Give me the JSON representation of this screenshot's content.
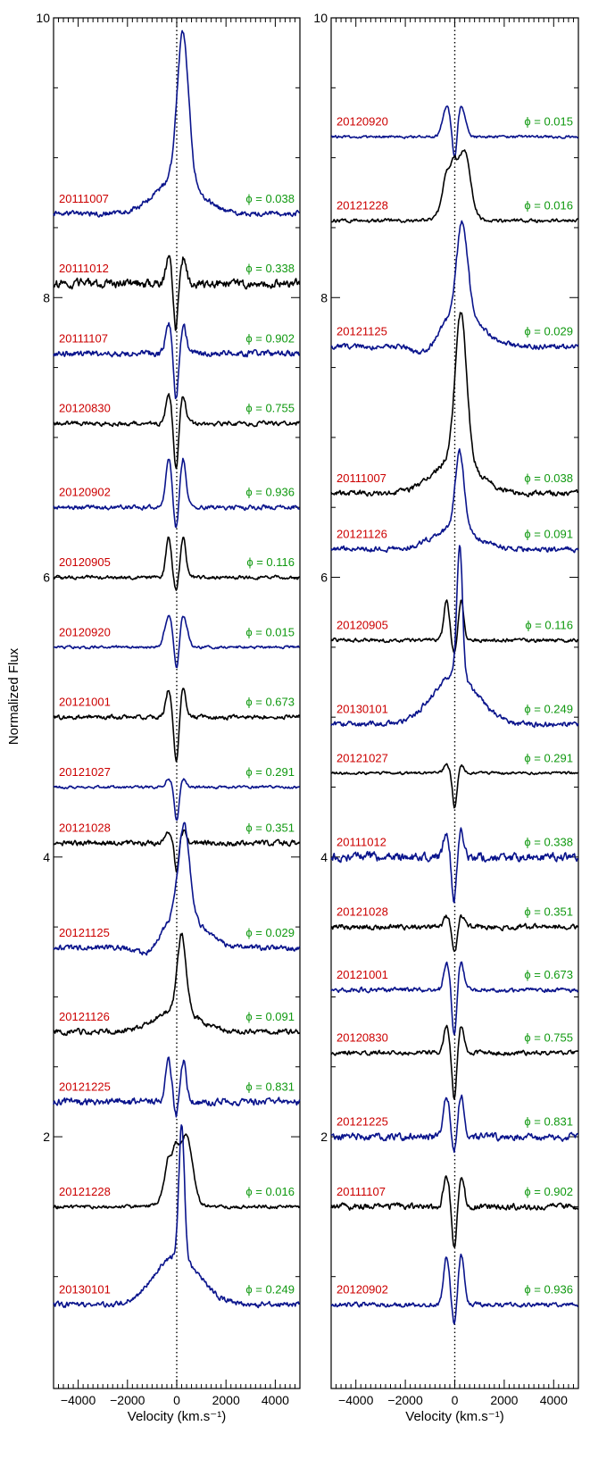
{
  "figure": {
    "ylabel": "Normalized Flux",
    "xlabel": "Velocity (km.s⁻¹)",
    "colors": {
      "black": "#000000",
      "blue": "#0a148c",
      "date": "#cc0000",
      "phase": "#109910"
    }
  },
  "chart_data": [
    {
      "type": "line",
      "title": "",
      "xlabel": "Velocity (km.s⁻¹)",
      "ylabel": "Normalized Flux",
      "xlim": [
        -5000,
        5000
      ],
      "ylim": [
        0.2,
        10
      ],
      "xticks": [
        -4000,
        -2000,
        0,
        2000,
        4000
      ],
      "xtick_labels": [
        "−4000",
        "−2000",
        "0",
        "2000",
        "4000"
      ],
      "yticks": [
        2,
        4,
        6,
        8,
        10
      ],
      "ytick_labels": [
        "2",
        "4",
        "6",
        "8",
        "10"
      ],
      "reference_line_x": 0,
      "series": [
        {
          "name": "20111007",
          "phase": "ϕ = 0.038",
          "color": "blue",
          "offset": 8.6,
          "profile": "emission",
          "amp": 1.05,
          "vc": 250,
          "width": 230,
          "blue_abs": 0.0,
          "red_abs": 0.0,
          "abs_v": 0,
          "wing": 0.25,
          "noise": 0.03
        },
        {
          "name": "20111012",
          "phase": "ϕ = 0.338",
          "color": "black",
          "offset": 8.1,
          "profile": "double",
          "amp": 0.18,
          "vc": 0,
          "width": 120,
          "blue_abs": 0.28,
          "red_abs": 0.0,
          "abs_v": -40,
          "wing": 0.0,
          "noise": 0.05
        },
        {
          "name": "20111107",
          "phase": "ϕ = 0.902",
          "color": "blue",
          "offset": 7.6,
          "profile": "double",
          "amp": 0.22,
          "vc": 0,
          "width": 120,
          "blue_abs": 0.28,
          "red_abs": 0.05,
          "abs_v": -30,
          "wing": 0.0,
          "noise": 0.035
        },
        {
          "name": "20120830",
          "phase": "ϕ = 0.755",
          "color": "black",
          "offset": 7.1,
          "profile": "double",
          "amp": 0.2,
          "vc": 0,
          "width": 110,
          "blue_abs": 0.28,
          "red_abs": 0.0,
          "abs_v": -20,
          "wing": 0.0,
          "noise": 0.025
        },
        {
          "name": "20120902",
          "phase": "ϕ = 0.936",
          "color": "blue",
          "offset": 6.5,
          "profile": "double",
          "amp": 0.35,
          "vc": 0,
          "width": 120,
          "blue_abs": 0.12,
          "red_abs": 0.0,
          "abs_v": -20,
          "wing": 0.0,
          "noise": 0.025
        },
        {
          "name": "20120905",
          "phase": "ϕ = 0.116",
          "color": "black",
          "offset": 6.0,
          "profile": "double",
          "amp": 0.28,
          "vc": 0,
          "width": 110,
          "blue_abs": 0.05,
          "red_abs": 0.0,
          "abs_v": -20,
          "wing": 0.0,
          "noise": 0.02
        },
        {
          "name": "20120920",
          "phase": "ϕ = 0.015",
          "color": "blue",
          "offset": 5.5,
          "profile": "double",
          "amp": 0.22,
          "vc": 0,
          "width": 160,
          "blue_abs": 0.18,
          "red_abs": 0.0,
          "abs_v": 0,
          "wing": 0.0,
          "noise": 0.015
        },
        {
          "name": "20121001",
          "phase": "ϕ = 0.673",
          "color": "black",
          "offset": 5.0,
          "profile": "double",
          "amp": 0.2,
          "vc": 0,
          "width": 110,
          "blue_abs": 0.28,
          "red_abs": 0.0,
          "abs_v": -20,
          "wing": 0.0,
          "noise": 0.025
        },
        {
          "name": "20121027",
          "phase": "ϕ = 0.291",
          "color": "blue",
          "offset": 4.5,
          "profile": "double",
          "amp": 0.06,
          "vc": 0,
          "width": 120,
          "blue_abs": 0.2,
          "red_abs": 0.0,
          "abs_v": 0,
          "wing": 0.0,
          "noise": 0.015
        },
        {
          "name": "20121028",
          "phase": "ϕ = 0.351",
          "color": "black",
          "offset": 4.1,
          "profile": "double",
          "amp": 0.08,
          "vc": 0,
          "width": 120,
          "blue_abs": 0.15,
          "red_abs": 0.0,
          "abs_v": 0,
          "wing": 0.0,
          "noise": 0.03
        },
        {
          "name": "20121125",
          "phase": "ϕ = 0.029",
          "color": "blue",
          "offset": 3.35,
          "profile": "emission",
          "amp": 0.65,
          "vc": 300,
          "width": 220,
          "blue_abs": 0.12,
          "red_abs": 0.0,
          "abs_v": -1100,
          "wing": 0.25,
          "noise": 0.03
        },
        {
          "name": "20121126",
          "phase": "ϕ = 0.091",
          "color": "black",
          "offset": 2.75,
          "profile": "emission",
          "amp": 0.55,
          "vc": 200,
          "width": 180,
          "blue_abs": 0.0,
          "red_abs": 0.0,
          "abs_v": 0,
          "wing": 0.15,
          "noise": 0.03
        },
        {
          "name": "20121225",
          "phase": "ϕ = 0.831",
          "color": "blue",
          "offset": 2.25,
          "profile": "double",
          "amp": 0.3,
          "vc": 0,
          "width": 120,
          "blue_abs": 0.08,
          "red_abs": 0.0,
          "abs_v": -20,
          "wing": 0.0,
          "noise": 0.04
        },
        {
          "name": "20121228",
          "phase": "ϕ = 0.016",
          "color": "black",
          "offset": 1.5,
          "profile": "double",
          "amp": 0.45,
          "vc": 150,
          "width": 230,
          "blue_abs": 0.08,
          "red_abs": 0.0,
          "abs_v": -200,
          "wing": 0.05,
          "noise": 0.02
        },
        {
          "name": "20130101",
          "phase": "ϕ = 0.249",
          "color": "blue",
          "offset": 0.8,
          "profile": "emission",
          "amp": 0.95,
          "vc": 200,
          "width": 110,
          "blue_abs": 0.0,
          "red_abs": 0.0,
          "abs_v": 0,
          "wing": 0.35,
          "noise": 0.03
        }
      ]
    },
    {
      "type": "line",
      "title": "",
      "xlabel": "Velocity (km.s⁻¹)",
      "ylabel": "",
      "xlim": [
        -5000,
        5000
      ],
      "ylim": [
        0.2,
        10
      ],
      "xticks": [
        -4000,
        -2000,
        0,
        2000,
        4000
      ],
      "xtick_labels": [
        "−4000",
        "−2000",
        "0",
        "2000",
        "4000"
      ],
      "yticks": [
        2,
        4,
        6,
        8,
        10
      ],
      "ytick_labels": [
        "2",
        "4",
        "6",
        "8",
        "10"
      ],
      "reference_line_x": 0,
      "series": [
        {
          "name": "20120920",
          "phase": "ϕ = 0.015",
          "color": "blue",
          "offset": 9.15,
          "profile": "double",
          "amp": 0.22,
          "vc": 0,
          "width": 160,
          "blue_abs": 0.18,
          "red_abs": 0.0,
          "abs_v": 0,
          "wing": 0.0,
          "noise": 0.015
        },
        {
          "name": "20121228",
          "phase": "ϕ = 0.016",
          "color": "black",
          "offset": 8.55,
          "profile": "double",
          "amp": 0.45,
          "vc": 150,
          "width": 230,
          "blue_abs": 0.08,
          "red_abs": 0.0,
          "abs_v": -200,
          "wing": 0.05,
          "noise": 0.02
        },
        {
          "name": "20121125",
          "phase": "ϕ = 0.029",
          "color": "blue",
          "offset": 7.65,
          "profile": "emission",
          "amp": 0.65,
          "vc": 300,
          "width": 220,
          "blue_abs": 0.12,
          "red_abs": 0.0,
          "abs_v": -1100,
          "wing": 0.25,
          "noise": 0.03
        },
        {
          "name": "20111007",
          "phase": "ϕ = 0.038",
          "color": "black",
          "offset": 6.6,
          "profile": "emission",
          "amp": 1.05,
          "vc": 250,
          "width": 230,
          "blue_abs": 0.0,
          "red_abs": 0.0,
          "abs_v": 0,
          "wing": 0.25,
          "noise": 0.03
        },
        {
          "name": "20121126",
          "phase": "ϕ = 0.091",
          "color": "blue",
          "offset": 6.2,
          "profile": "emission",
          "amp": 0.55,
          "vc": 200,
          "width": 180,
          "blue_abs": 0.0,
          "red_abs": 0.0,
          "abs_v": 0,
          "wing": 0.15,
          "noise": 0.03
        },
        {
          "name": "20120905",
          "phase": "ϕ = 0.116",
          "color": "black",
          "offset": 5.55,
          "profile": "double",
          "amp": 0.28,
          "vc": 0,
          "width": 110,
          "blue_abs": 0.05,
          "red_abs": 0.0,
          "abs_v": -20,
          "wing": 0.0,
          "noise": 0.02
        },
        {
          "name": "20130101",
          "phase": "ϕ = 0.249",
          "color": "blue",
          "offset": 4.95,
          "profile": "emission",
          "amp": 0.95,
          "vc": 200,
          "width": 110,
          "blue_abs": 0.0,
          "red_abs": 0.0,
          "abs_v": 0,
          "wing": 0.35,
          "noise": 0.03
        },
        {
          "name": "20121027",
          "phase": "ϕ = 0.291",
          "color": "black",
          "offset": 4.6,
          "profile": "double",
          "amp": 0.06,
          "vc": 0,
          "width": 120,
          "blue_abs": 0.2,
          "red_abs": 0.0,
          "abs_v": 0,
          "wing": 0.0,
          "noise": 0.015
        },
        {
          "name": "20111012",
          "phase": "ϕ = 0.338",
          "color": "blue",
          "offset": 4.0,
          "profile": "double",
          "amp": 0.18,
          "vc": 0,
          "width": 120,
          "blue_abs": 0.28,
          "red_abs": 0.0,
          "abs_v": -40,
          "wing": 0.0,
          "noise": 0.05
        },
        {
          "name": "20121028",
          "phase": "ϕ = 0.351",
          "color": "black",
          "offset": 3.5,
          "profile": "double",
          "amp": 0.08,
          "vc": 0,
          "width": 120,
          "blue_abs": 0.15,
          "red_abs": 0.0,
          "abs_v": 0,
          "wing": 0.0,
          "noise": 0.03
        },
        {
          "name": "20121001",
          "phase": "ϕ = 0.673",
          "color": "blue",
          "offset": 3.05,
          "profile": "double",
          "amp": 0.2,
          "vc": 0,
          "width": 110,
          "blue_abs": 0.28,
          "red_abs": 0.0,
          "abs_v": -20,
          "wing": 0.0,
          "noise": 0.025
        },
        {
          "name": "20120830",
          "phase": "ϕ = 0.755",
          "color": "black",
          "offset": 2.6,
          "profile": "double",
          "amp": 0.2,
          "vc": 0,
          "width": 110,
          "blue_abs": 0.28,
          "red_abs": 0.0,
          "abs_v": -20,
          "wing": 0.0,
          "noise": 0.025
        },
        {
          "name": "20121225",
          "phase": "ϕ = 0.831",
          "color": "blue",
          "offset": 2.0,
          "profile": "double",
          "amp": 0.3,
          "vc": 0,
          "width": 120,
          "blue_abs": 0.08,
          "red_abs": 0.0,
          "abs_v": -20,
          "wing": 0.0,
          "noise": 0.04
        },
        {
          "name": "20111107",
          "phase": "ϕ = 0.902",
          "color": "black",
          "offset": 1.5,
          "profile": "double",
          "amp": 0.22,
          "vc": 0,
          "width": 120,
          "blue_abs": 0.28,
          "red_abs": 0.05,
          "abs_v": -30,
          "wing": 0.0,
          "noise": 0.035
        },
        {
          "name": "20120902",
          "phase": "ϕ = 0.936",
          "color": "blue",
          "offset": 0.8,
          "profile": "double",
          "amp": 0.35,
          "vc": 0,
          "width": 120,
          "blue_abs": 0.12,
          "red_abs": 0.0,
          "abs_v": -20,
          "wing": 0.0,
          "noise": 0.025
        }
      ]
    }
  ]
}
